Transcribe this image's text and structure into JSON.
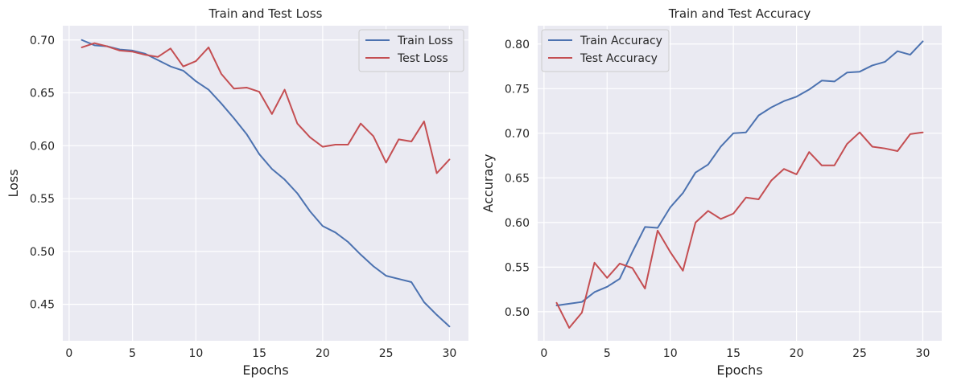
{
  "chart_data": [
    {
      "type": "line",
      "title": "Train and Test Loss",
      "xlabel": "Epochs",
      "ylabel": "Loss",
      "xlim": [
        -0.5,
        31.5
      ],
      "ylim": [
        0.4155,
        0.7135
      ],
      "xticks": [
        0,
        5,
        10,
        15,
        20,
        25,
        30
      ],
      "yticks": [
        0.45,
        0.5,
        0.55,
        0.6,
        0.65,
        0.7
      ],
      "ytick_labels": [
        "0.45",
        "0.50",
        "0.55",
        "0.60",
        "0.65",
        "0.70"
      ],
      "grid": true,
      "legend_position": "upper right",
      "x": [
        1,
        2,
        3,
        4,
        5,
        6,
        7,
        8,
        9,
        10,
        11,
        12,
        13,
        14,
        15,
        16,
        17,
        18,
        19,
        20,
        21,
        22,
        23,
        24,
        25,
        26,
        27,
        28,
        29,
        30
      ],
      "series": [
        {
          "name": "Train Loss",
          "color": "#4c72b0",
          "values": [
            0.7,
            0.695,
            0.694,
            0.691,
            0.69,
            0.687,
            0.681,
            0.675,
            0.671,
            0.661,
            0.653,
            0.64,
            0.626,
            0.611,
            0.592,
            0.578,
            0.568,
            0.555,
            0.538,
            0.524,
            0.518,
            0.509,
            0.497,
            0.486,
            0.477,
            0.474,
            0.471,
            0.452,
            0.44,
            0.429
          ]
        },
        {
          "name": "Test Loss",
          "color": "#c44e52",
          "values": [
            0.693,
            0.697,
            0.694,
            0.69,
            0.689,
            0.686,
            0.684,
            0.692,
            0.675,
            0.68,
            0.693,
            0.668,
            0.654,
            0.655,
            0.651,
            0.63,
            0.653,
            0.621,
            0.608,
            0.599,
            0.601,
            0.601,
            0.621,
            0.609,
            0.584,
            0.606,
            0.604,
            0.623,
            0.574,
            0.587
          ]
        }
      ]
    },
    {
      "type": "line",
      "title": "Train and Test Accuracy",
      "xlabel": "Epochs",
      "ylabel": "Accuracy",
      "xlim": [
        -0.5,
        31.5
      ],
      "ylim": [
        0.4675,
        0.8205
      ],
      "xticks": [
        0,
        5,
        10,
        15,
        20,
        25,
        30
      ],
      "yticks": [
        0.5,
        0.55,
        0.6,
        0.65,
        0.7,
        0.75,
        0.8
      ],
      "ytick_labels": [
        "0.50",
        "0.55",
        "0.60",
        "0.65",
        "0.70",
        "0.75",
        "0.80"
      ],
      "grid": true,
      "legend_position": "upper left",
      "x": [
        1,
        2,
        3,
        4,
        5,
        6,
        7,
        8,
        9,
        10,
        11,
        12,
        13,
        14,
        15,
        16,
        17,
        18,
        19,
        20,
        21,
        22,
        23,
        24,
        25,
        26,
        27,
        28,
        29,
        30
      ],
      "series": [
        {
          "name": "Train Accuracy",
          "color": "#4c72b0",
          "values": [
            0.507,
            0.509,
            0.511,
            0.522,
            0.528,
            0.537,
            0.567,
            0.595,
            0.594,
            0.617,
            0.633,
            0.656,
            0.665,
            0.685,
            0.7,
            0.701,
            0.72,
            0.729,
            0.736,
            0.741,
            0.749,
            0.759,
            0.758,
            0.768,
            0.769,
            0.776,
            0.78,
            0.792,
            0.788,
            0.803
          ]
        },
        {
          "name": "Test Accuracy",
          "color": "#c44e52",
          "values": [
            0.51,
            0.482,
            0.499,
            0.555,
            0.538,
            0.554,
            0.549,
            0.526,
            0.591,
            0.567,
            0.546,
            0.6,
            0.613,
            0.604,
            0.61,
            0.628,
            0.626,
            0.647,
            0.66,
            0.654,
            0.679,
            0.664,
            0.664,
            0.688,
            0.701,
            0.685,
            0.683,
            0.68,
            0.699,
            0.701
          ]
        }
      ]
    }
  ]
}
